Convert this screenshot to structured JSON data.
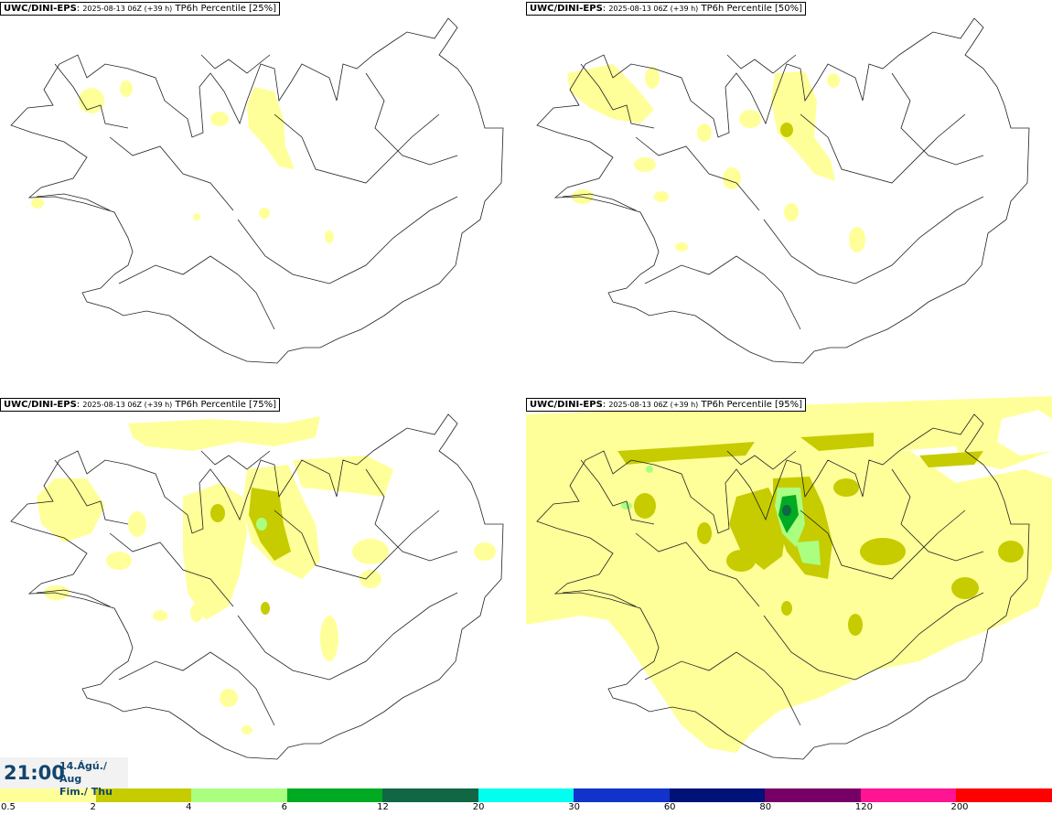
{
  "panels": [
    {
      "model": "UWC/DINI-EPS",
      "run": "2025-08-13 06Z (+39 h)",
      "field": "TP6h Percentile [25%]"
    },
    {
      "model": "UWC/DINI-EPS",
      "run": "2025-08-13 06Z (+39 h)",
      "field": "TP6h Percentile [50%]"
    },
    {
      "model": "UWC/DINI-EPS",
      "run": "2025-08-13 06Z (+39 h)",
      "field": "TP6h Percentile [75%]"
    },
    {
      "model": "UWC/DINI-EPS",
      "run": "2025-08-13 06Z (+39 h)",
      "field": "TP6h Percentile [95%]"
    }
  ],
  "valid_time": {
    "clock": "21:00",
    "date_line": "14.Ágú./ Aug",
    "day_line": "Fim./ Thu"
  },
  "legend": {
    "labels": [
      "0.5",
      "2",
      "4",
      "6",
      "12",
      "20",
      "30",
      "60",
      "80",
      "120",
      "200"
    ],
    "colors": [
      "#ffff99",
      "#c6cc00",
      "#aaff80",
      "#00aa22",
      "#116644",
      "#00ffee",
      "#1133cc",
      "#001177",
      "#770066",
      "#ff1493",
      "#ff0000"
    ]
  }
}
